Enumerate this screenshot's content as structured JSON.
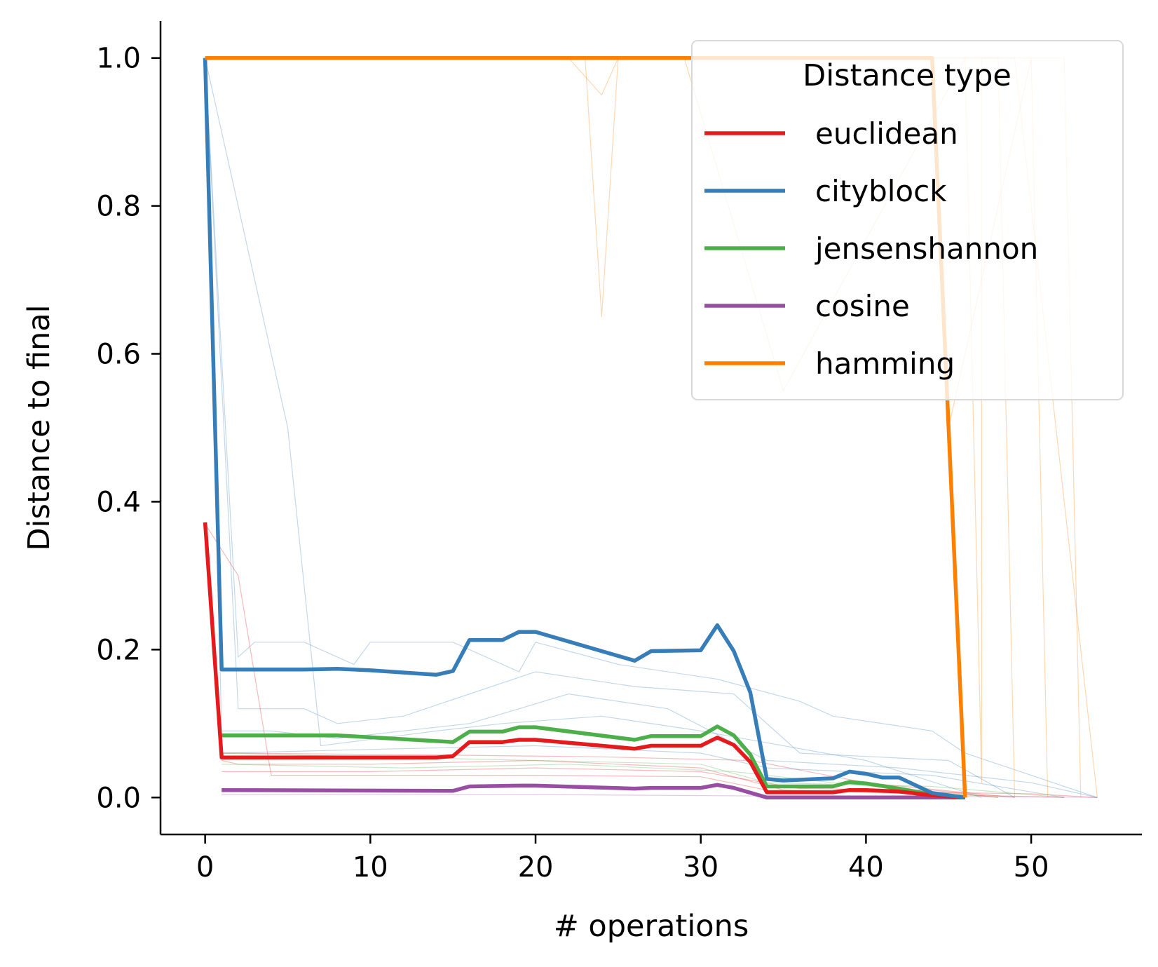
{
  "chart_data": {
    "type": "line",
    "xlabel": "# operations",
    "ylabel": "Distance to final",
    "xlim": [
      -2.7,
      56.7
    ],
    "ylim": [
      -0.05,
      1.05
    ],
    "xticks": [
      0,
      10,
      20,
      30,
      40,
      50
    ],
    "yticks": [
      0.0,
      0.2,
      0.4,
      0.6,
      0.8,
      1.0
    ],
    "ytick_labels": [
      "0.0",
      "0.2",
      "0.4",
      "0.6",
      "0.8",
      "1.0"
    ],
    "grid": false,
    "legend": {
      "title": "Distance type",
      "placement": "top-right"
    },
    "series": [
      {
        "name": "euclidean",
        "color": "#e41a1c",
        "x": [
          0,
          1,
          2,
          5,
          10,
          14,
          15,
          16,
          18,
          19,
          20,
          22,
          26,
          27,
          30,
          31,
          32,
          33,
          34,
          38,
          39,
          40,
          42,
          44,
          46
        ],
        "y": [
          0.372,
          0.054,
          0.054,
          0.054,
          0.054,
          0.054,
          0.056,
          0.075,
          0.075,
          0.078,
          0.078,
          0.074,
          0.066,
          0.07,
          0.07,
          0.081,
          0.071,
          0.048,
          0.007,
          0.007,
          0.01,
          0.01,
          0.008,
          0.003,
          0.0
        ]
      },
      {
        "name": "cityblock",
        "color": "#377eb8",
        "x": [
          0,
          1,
          6,
          8,
          10,
          14,
          15,
          16,
          18,
          19,
          20,
          26,
          27,
          30,
          31,
          32,
          33,
          34,
          35,
          38,
          39,
          40,
          41,
          42,
          44,
          46
        ],
        "y": [
          1.0,
          0.173,
          0.173,
          0.174,
          0.172,
          0.166,
          0.171,
          0.213,
          0.213,
          0.224,
          0.224,
          0.185,
          0.198,
          0.199,
          0.233,
          0.198,
          0.142,
          0.025,
          0.023,
          0.026,
          0.035,
          0.032,
          0.027,
          0.027,
          0.006,
          0.0
        ]
      },
      {
        "name": "jensenshannon",
        "color": "#4daf4a",
        "x": [
          1,
          8,
          15,
          16,
          18,
          19,
          20,
          26,
          27,
          30,
          31,
          32,
          33,
          34,
          38,
          39,
          40,
          42,
          44,
          46
        ],
        "y": [
          0.084,
          0.084,
          0.075,
          0.089,
          0.089,
          0.095,
          0.095,
          0.078,
          0.083,
          0.083,
          0.096,
          0.084,
          0.058,
          0.015,
          0.015,
          0.021,
          0.019,
          0.012,
          0.004,
          0.0
        ]
      },
      {
        "name": "cosine",
        "color": "#984ea3",
        "x": [
          1,
          15,
          16,
          19,
          20,
          26,
          27,
          30,
          31,
          32,
          34,
          40,
          46
        ],
        "y": [
          0.01,
          0.009,
          0.015,
          0.016,
          0.016,
          0.012,
          0.013,
          0.013,
          0.017,
          0.013,
          0.0,
          0.0,
          0.0
        ]
      },
      {
        "name": "hamming",
        "color": "#ff7f00",
        "x": [
          0,
          44,
          46
        ],
        "y": [
          1.0,
          1.0,
          0.0
        ]
      }
    ],
    "background_runs": [
      {
        "series": "euclidean",
        "x": [
          0,
          2,
          4,
          8,
          20,
          30,
          34,
          50,
          54
        ],
        "y": [
          0.37,
          0.3,
          0.03,
          0.03,
          0.03,
          0.028,
          0.01,
          0.005,
          0.0
        ]
      },
      {
        "series": "euclidean",
        "x": [
          1,
          2,
          10,
          20,
          30,
          35,
          45,
          52
        ],
        "y": [
          0.05,
          0.045,
          0.045,
          0.05,
          0.04,
          0.01,
          0.004,
          0.0
        ]
      },
      {
        "series": "euclidean",
        "x": [
          1,
          10,
          20,
          30,
          36,
          44,
          48
        ],
        "y": [
          0.035,
          0.035,
          0.04,
          0.035,
          0.012,
          0.01,
          0.0
        ]
      },
      {
        "series": "euclidean",
        "x": [
          1,
          12,
          24,
          33,
          40,
          49
        ],
        "y": [
          0.06,
          0.058,
          0.055,
          0.05,
          0.02,
          0.0
        ]
      },
      {
        "series": "cityblock",
        "x": [
          0,
          1,
          4,
          8,
          16,
          22,
          28,
          34,
          42,
          50,
          54
        ],
        "y": [
          1.0,
          0.09,
          0.09,
          0.08,
          0.1,
          0.14,
          0.12,
          0.05,
          0.04,
          0.02,
          0.0
        ]
      },
      {
        "series": "cityblock",
        "x": [
          0,
          2,
          3,
          6,
          9,
          10,
          15,
          19,
          20,
          25,
          31,
          36,
          38,
          44,
          46,
          50,
          54
        ],
        "y": [
          1.0,
          0.19,
          0.21,
          0.21,
          0.18,
          0.21,
          0.21,
          0.17,
          0.21,
          0.18,
          0.16,
          0.13,
          0.11,
          0.09,
          0.06,
          0.03,
          0.0
        ]
      },
      {
        "series": "cityblock",
        "x": [
          0,
          2,
          6,
          8,
          12,
          20,
          26,
          32,
          36,
          45,
          49
        ],
        "y": [
          1.0,
          0.12,
          0.12,
          0.1,
          0.11,
          0.17,
          0.15,
          0.14,
          0.06,
          0.05,
          0.0
        ]
      },
      {
        "series": "cityblock",
        "x": [
          0,
          5,
          7,
          14,
          18,
          24,
          30,
          40,
          47
        ],
        "y": [
          1.0,
          0.5,
          0.07,
          0.09,
          0.1,
          0.11,
          0.09,
          0.05,
          0.0
        ]
      },
      {
        "series": "cityblock",
        "x": [
          1,
          10,
          20,
          30,
          34,
          44,
          52
        ],
        "y": [
          0.06,
          0.065,
          0.07,
          0.06,
          0.04,
          0.03,
          0.0
        ]
      },
      {
        "series": "jensenshannon",
        "x": [
          1,
          10,
          20,
          30,
          34,
          44,
          52
        ],
        "y": [
          0.06,
          0.055,
          0.05,
          0.045,
          0.02,
          0.015,
          0.0
        ]
      },
      {
        "series": "jensenshannon",
        "x": [
          1,
          12,
          22,
          32,
          38,
          48
        ],
        "y": [
          0.045,
          0.04,
          0.045,
          0.035,
          0.02,
          0.0
        ]
      },
      {
        "series": "cosine",
        "x": [
          1,
          20,
          34,
          50,
          54
        ],
        "y": [
          0.004,
          0.004,
          0.002,
          0.001,
          0.0
        ]
      },
      {
        "series": "hamming",
        "x": [
          0,
          22,
          24,
          25,
          29,
          35,
          46,
          47,
          47,
          52,
          53
        ],
        "y": [
          1.0,
          1.0,
          0.95,
          1.0,
          1.0,
          0.55,
          1.0,
          0.02,
          1.0,
          1.0,
          0.0
        ]
      },
      {
        "series": "hamming",
        "x": [
          0,
          23,
          24,
          25,
          30,
          48,
          49
        ],
        "y": [
          1.0,
          1.0,
          0.65,
          1.0,
          1.0,
          1.0,
          0.0
        ]
      },
      {
        "series": "hamming",
        "x": [
          0,
          44,
          45,
          50,
          51
        ],
        "y": [
          1.0,
          1.0,
          0.5,
          1.0,
          0.0
        ]
      },
      {
        "series": "hamming",
        "x": [
          0,
          48,
          49,
          54
        ],
        "y": [
          1.0,
          1.0,
          1.0,
          0.0
        ]
      }
    ]
  }
}
